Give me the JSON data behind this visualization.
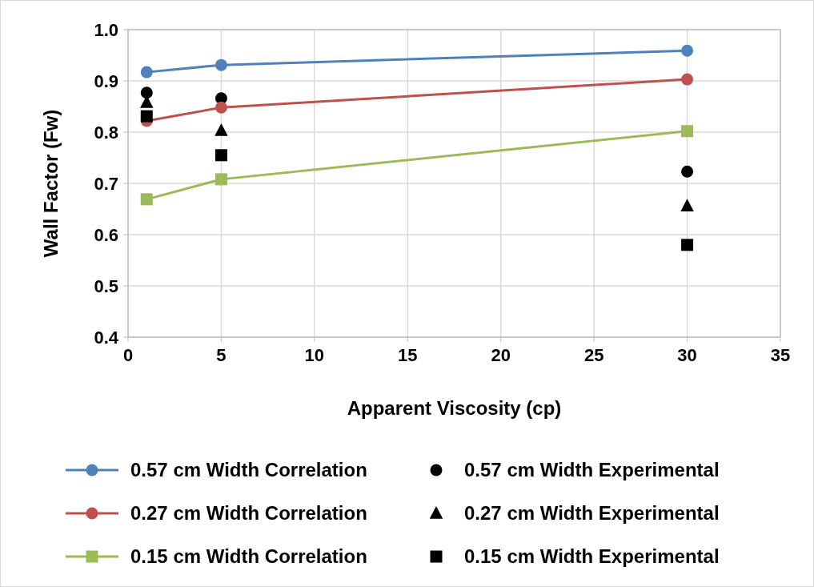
{
  "chart_data": {
    "type": "line",
    "xlabel": "Apparent Viscosity (cp)",
    "ylabel": "Wall Factor (Fw)",
    "xlim": [
      0,
      35
    ],
    "xticks": [
      0,
      5,
      10,
      15,
      20,
      25,
      30,
      35
    ],
    "ylim": [
      0.4,
      1.0
    ],
    "yticks": [
      {
        "value": 0.4,
        "label": "0.4"
      },
      {
        "value": 0.5,
        "label": "0.5"
      },
      {
        "value": 0.6,
        "label": "0.6"
      },
      {
        "value": 0.7,
        "label": "0.7"
      },
      {
        "value": 0.8,
        "label": "0.8"
      },
      {
        "value": 0.9,
        "label": "0.9"
      },
      {
        "value": 1.0,
        "label": "1.0"
      }
    ],
    "grid": true,
    "legend": "bottom",
    "series": [
      {
        "name": "0.57 cm Width Correlation",
        "type": "line",
        "marker": "circle",
        "color": "#4f81bd",
        "x": [
          1,
          5,
          30
        ],
        "values": [
          0.917,
          0.931,
          0.959
        ]
      },
      {
        "name": "0.57 cm Width Experimental",
        "type": "scatter",
        "marker": "circle",
        "color": "#000000",
        "x": [
          1,
          5,
          30
        ],
        "values": [
          0.877,
          0.866,
          0.723
        ]
      },
      {
        "name": "0.27 cm Width Correlation",
        "type": "line",
        "marker": "circle",
        "color": "#c0504d",
        "x": [
          1,
          5,
          30
        ],
        "values": [
          0.822,
          0.848,
          0.903
        ]
      },
      {
        "name": "0.27 cm Width Experimental",
        "type": "scatter",
        "marker": "triangle",
        "color": "#000000",
        "x": [
          1,
          5,
          30
        ],
        "values": [
          0.858,
          0.803,
          0.656
        ]
      },
      {
        "name": "0.15 cm Width Correlation",
        "type": "line",
        "marker": "square",
        "color": "#9bbb59",
        "x": [
          1,
          5,
          30
        ],
        "values": [
          0.669,
          0.708,
          0.802
        ]
      },
      {
        "name": "0.15 cm Width Experimental",
        "type": "scatter",
        "marker": "square",
        "color": "#000000",
        "x": [
          1,
          5,
          30
        ],
        "values": [
          0.831,
          0.755,
          0.58
        ]
      }
    ]
  }
}
